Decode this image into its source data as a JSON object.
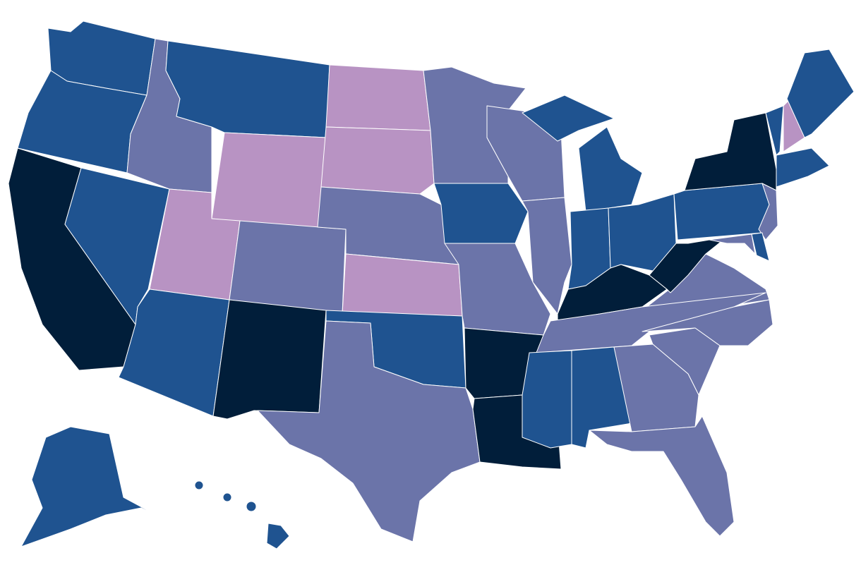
{
  "map": {
    "colors": [
      "#1f5390",
      "#6b74a9",
      "#b893c3",
      "#011e3a"
    ]
  }
}
